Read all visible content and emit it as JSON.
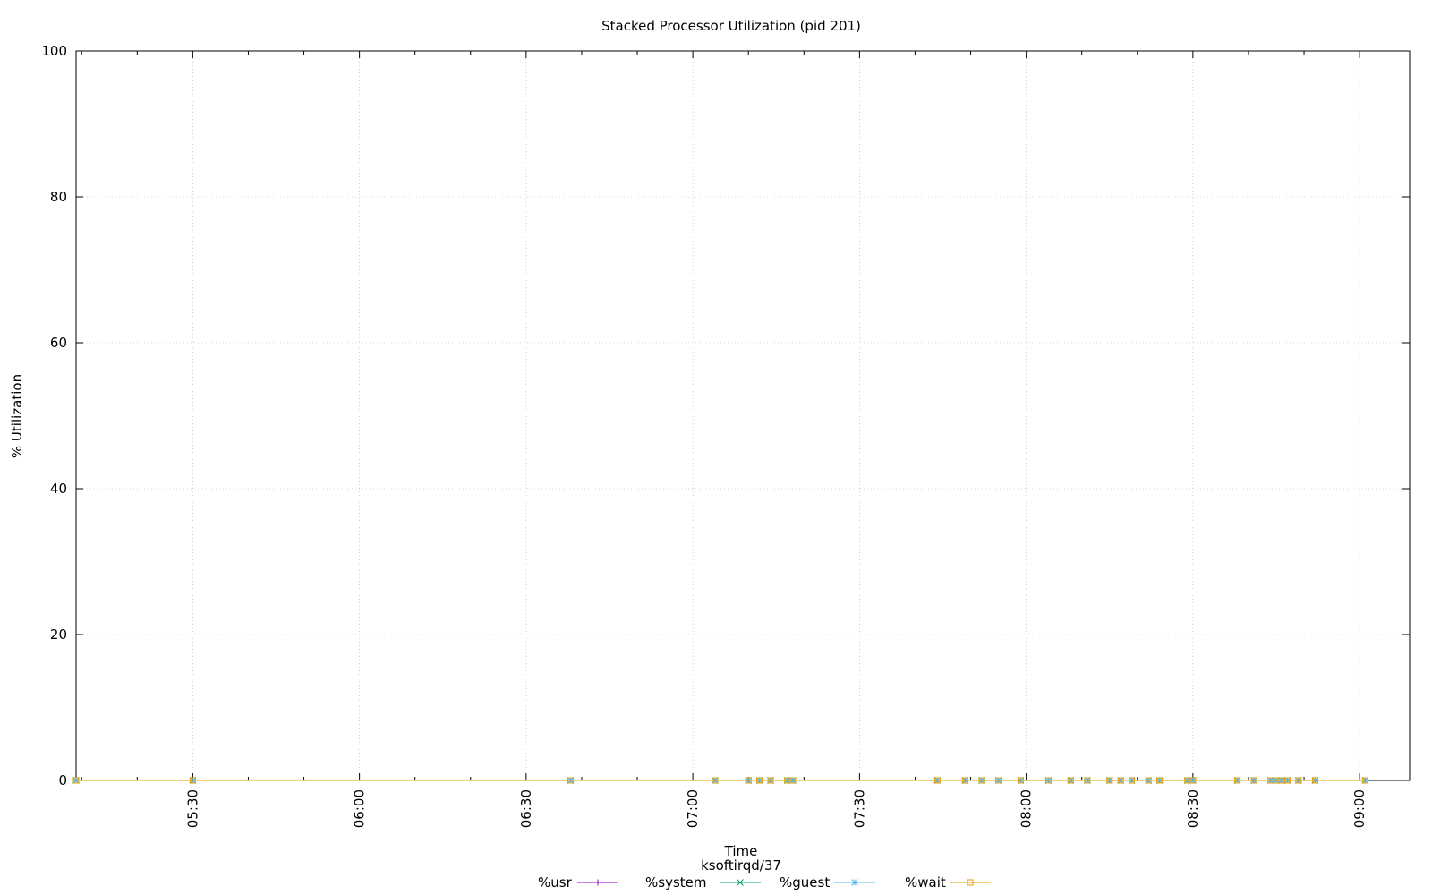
{
  "chart_data": {
    "type": "line",
    "title": "Stacked Processor Utilization (pid 201)",
    "xlabel": "Time",
    "xlabel2": "ksoftirqd/37",
    "ylabel": "% Utilization",
    "ylim": [
      0,
      100
    ],
    "yticks": [
      "0",
      "20",
      "40",
      "60",
      "80",
      "100"
    ],
    "xlim": [
      "05:09",
      "09:09"
    ],
    "xticks": [
      "05:30",
      "06:00",
      "06:30",
      "07:00",
      "07:30",
      "08:00",
      "08:30",
      "09:00"
    ],
    "grid": true,
    "legend_position": "bottom",
    "x": [
      "05:09",
      "05:30",
      "06:38",
      "07:04",
      "07:10",
      "07:12",
      "07:14",
      "07:17",
      "07:18",
      "07:44",
      "07:49",
      "07:52",
      "07:55",
      "07:59",
      "08:04",
      "08:08",
      "08:11",
      "08:15",
      "08:17",
      "08:19",
      "08:22",
      "08:24",
      "08:29",
      "08:30",
      "08:38",
      "08:41",
      "08:44",
      "08:45",
      "08:46",
      "08:47",
      "08:49",
      "08:52",
      "09:01"
    ],
    "series": [
      {
        "name": "%usr",
        "color": "#9400d3",
        "marker": "plus",
        "values": [
          0,
          0,
          0,
          0,
          0,
          0,
          0,
          0,
          0,
          0,
          0,
          0,
          0,
          0,
          0,
          0,
          0,
          0,
          0,
          0,
          0,
          0,
          0,
          0,
          0,
          0,
          0,
          0,
          0,
          0,
          0,
          0,
          0
        ]
      },
      {
        "name": "%system",
        "color": "#009e73",
        "marker": "cross",
        "values": [
          0,
          0,
          0,
          0,
          0,
          0,
          0,
          0,
          0,
          0,
          0,
          0,
          0,
          0,
          0,
          0,
          0,
          0,
          0,
          0,
          0,
          0,
          0,
          0,
          0,
          0,
          0,
          0,
          0,
          0,
          0,
          0,
          0
        ]
      },
      {
        "name": "%guest",
        "color": "#56b4e9",
        "marker": "star",
        "values": [
          0,
          0,
          0,
          0,
          0,
          0,
          0,
          0,
          0,
          0,
          0,
          0,
          0,
          0,
          0,
          0,
          0,
          0,
          0,
          0,
          0,
          0,
          0,
          0,
          0,
          0,
          0,
          0,
          0,
          0,
          0,
          0,
          0
        ]
      },
      {
        "name": "%wait",
        "color": "#e69f00",
        "marker": "square",
        "values": [
          0,
          0,
          0,
          0,
          0,
          0,
          0,
          0,
          0,
          0,
          0,
          0,
          0,
          0,
          0,
          0,
          0,
          0,
          0,
          0,
          0,
          0,
          0,
          0,
          0,
          0,
          0,
          0,
          0,
          0,
          0,
          0,
          0
        ]
      }
    ]
  }
}
